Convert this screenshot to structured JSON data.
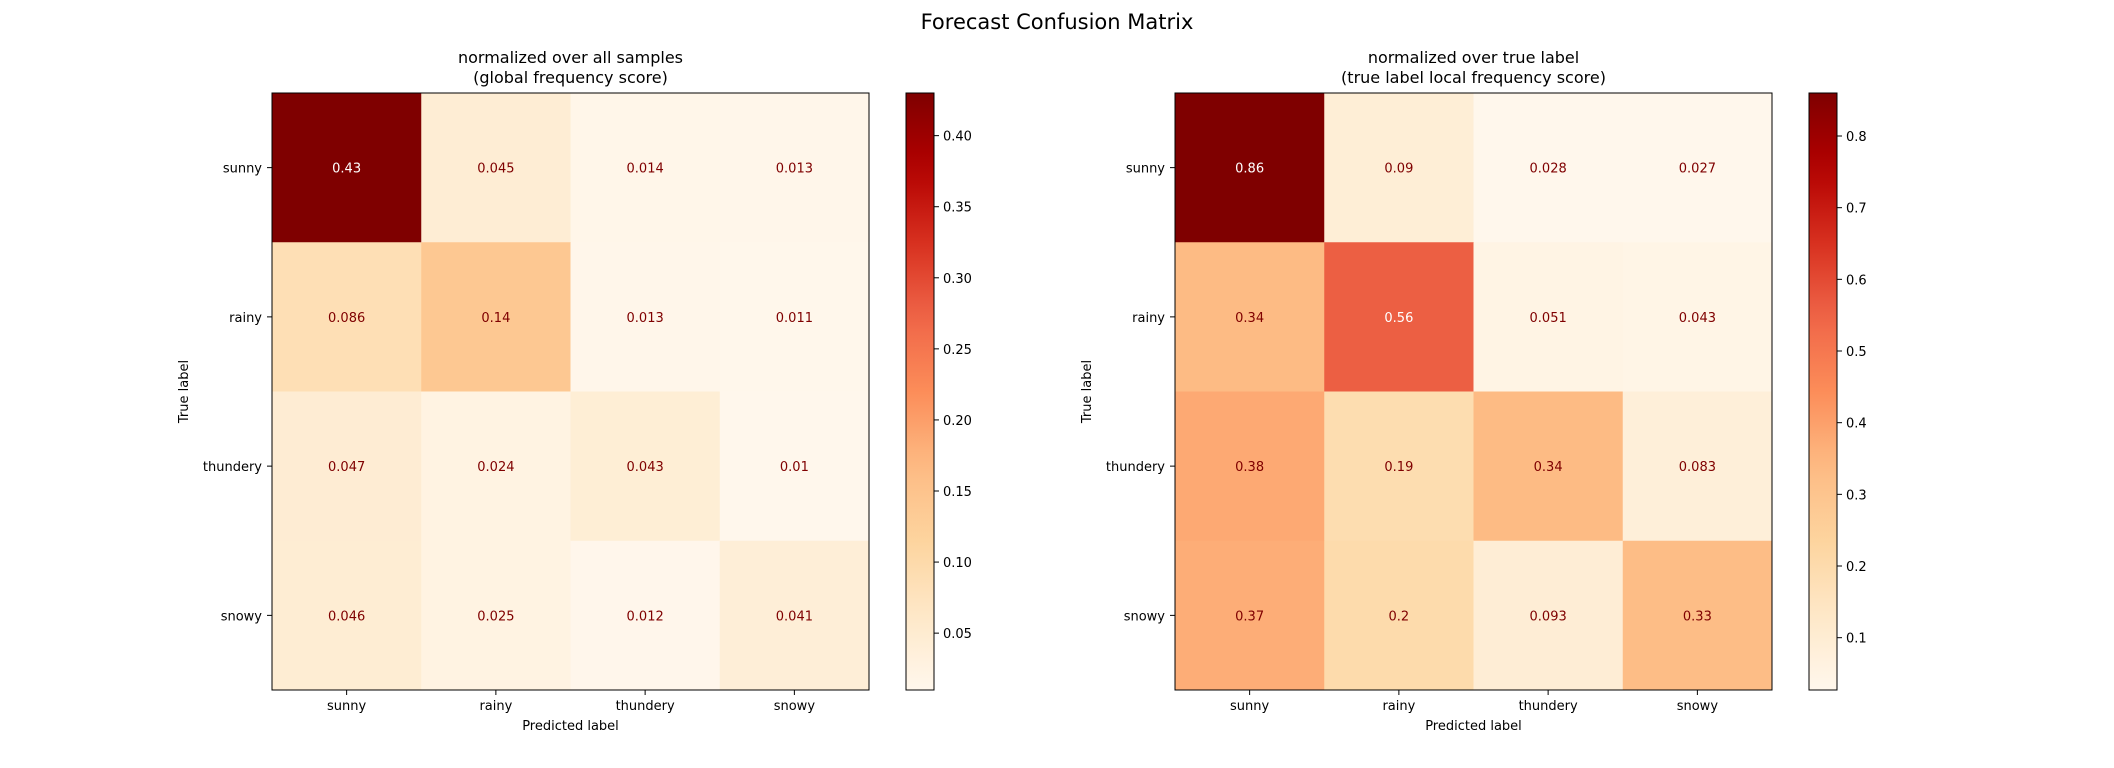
{
  "figure": {
    "title": "Forecast Confusion Matrix"
  },
  "chart_data": [
    {
      "type": "heatmap",
      "title": "normalized over all samples\n(global frequency score)",
      "title_lines": [
        "normalized over all samples",
        "(global frequency score)"
      ],
      "xlabel": "Predicted label",
      "ylabel": "True label",
      "x_categories": [
        "sunny",
        "rainy",
        "thundery",
        "snowy"
      ],
      "y_categories": [
        "sunny",
        "rainy",
        "thundery",
        "snowy"
      ],
      "values": [
        [
          0.43,
          0.045,
          0.014,
          0.013
        ],
        [
          0.086,
          0.14,
          0.013,
          0.011
        ],
        [
          0.047,
          0.024,
          0.043,
          0.01
        ],
        [
          0.046,
          0.025,
          0.012,
          0.041
        ]
      ],
      "labels": [
        [
          "0.43",
          "0.045",
          "0.014",
          "0.013"
        ],
        [
          "0.086",
          "0.14",
          "0.013",
          "0.011"
        ],
        [
          "0.047",
          "0.024",
          "0.043",
          "0.01"
        ],
        [
          "0.046",
          "0.025",
          "0.012",
          "0.041"
        ]
      ],
      "colormap": "OrRd",
      "colorbar": {
        "range": [
          0.01,
          0.43
        ],
        "ticks": [
          0.05,
          0.1,
          0.15,
          0.2,
          0.25,
          0.3,
          0.35,
          0.4
        ],
        "tick_labels": [
          "0.05",
          "0.10",
          "0.15",
          "0.20",
          "0.25",
          "0.30",
          "0.35",
          "0.40"
        ]
      }
    },
    {
      "type": "heatmap",
      "title": "normalized over true label\n(true label local frequency score)",
      "title_lines": [
        "normalized over true label",
        "(true label local frequency score)"
      ],
      "xlabel": "Predicted label",
      "ylabel": "True label",
      "x_categories": [
        "sunny",
        "rainy",
        "thundery",
        "snowy"
      ],
      "y_categories": [
        "sunny",
        "rainy",
        "thundery",
        "snowy"
      ],
      "values": [
        [
          0.86,
          0.09,
          0.028,
          0.027
        ],
        [
          0.34,
          0.56,
          0.051,
          0.043
        ],
        [
          0.38,
          0.19,
          0.34,
          0.083
        ],
        [
          0.37,
          0.2,
          0.093,
          0.33
        ]
      ],
      "labels": [
        [
          "0.86",
          "0.09",
          "0.028",
          "0.027"
        ],
        [
          "0.34",
          "0.56",
          "0.051",
          "0.043"
        ],
        [
          "0.38",
          "0.19",
          "0.34",
          "0.083"
        ],
        [
          "0.37",
          "0.2",
          "0.093",
          "0.33"
        ]
      ],
      "colormap": "OrRd",
      "colorbar": {
        "range": [
          0.027,
          0.86
        ],
        "ticks": [
          0.1,
          0.2,
          0.3,
          0.4,
          0.5,
          0.6,
          0.7,
          0.8
        ],
        "tick_labels": [
          "0.1",
          "0.2",
          "0.3",
          "0.4",
          "0.5",
          "0.6",
          "0.7",
          "0.8"
        ]
      }
    }
  ]
}
